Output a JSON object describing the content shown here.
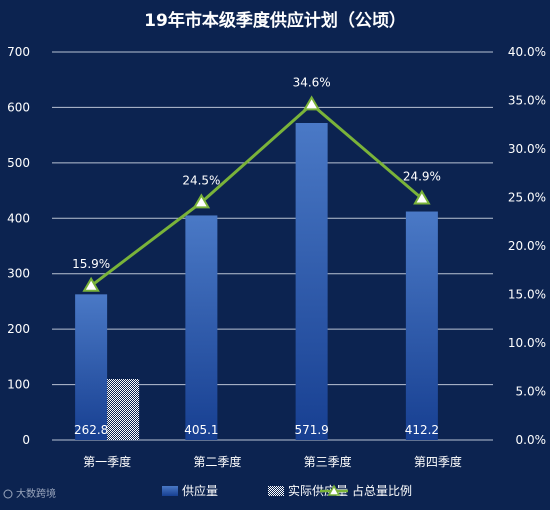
{
  "chart_data": {
    "type": "bar",
    "title": "19年市本级季度供应计划（公顷）",
    "categories": [
      "第一季度",
      "第二季度",
      "第三季度",
      "第四季度"
    ],
    "series": [
      {
        "name": "供应量",
        "type": "bar",
        "axis": "left",
        "values": [
          262.8,
          405.1,
          571.9,
          412.2
        ],
        "color": "#2f5fb3"
      },
      {
        "name": "实际供应量",
        "type": "bar",
        "axis": "left",
        "values": [
          110,
          null,
          null,
          null
        ],
        "color": "#ffffff"
      },
      {
        "name": "占总量比例",
        "type": "line",
        "axis": "right",
        "values": [
          15.9,
          24.5,
          34.6,
          24.9
        ],
        "color": "#7ab33a"
      }
    ],
    "bar_labels": [
      "262.8",
      "405.1",
      "571.9",
      "412.2"
    ],
    "line_labels": [
      "15.9%",
      "24.5%",
      "34.6%",
      "24.9%"
    ],
    "y_left": {
      "min": 0,
      "max": 700,
      "ticks": [
        "0",
        "100",
        "200",
        "300",
        "400",
        "500",
        "600",
        "700"
      ]
    },
    "y_right": {
      "min": 0,
      "max": 40,
      "ticks": [
        "0.0%",
        "5.0%",
        "10.0%",
        "15.0%",
        "20.0%",
        "25.0%",
        "30.0%",
        "35.0%",
        "40.0%"
      ]
    },
    "grid": true,
    "legend_position": "bottom"
  },
  "watermark": "大数跨境"
}
